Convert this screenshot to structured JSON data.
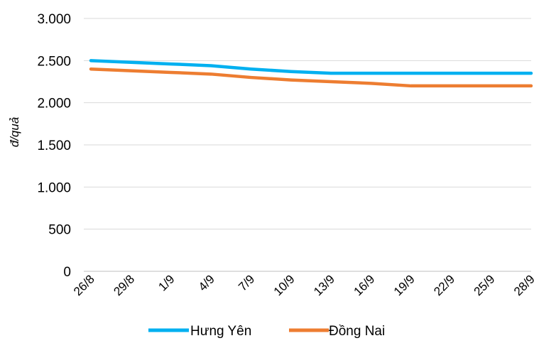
{
  "chart_data": {
    "type": "line",
    "title": "",
    "xlabel": "",
    "ylabel": "đ/quả",
    "ylim": [
      0,
      3000
    ],
    "yticks": [
      0,
      500,
      1000,
      1500,
      2000,
      2500,
      3000
    ],
    "ytick_labels": [
      "0",
      "500",
      "1.000",
      "1.500",
      "2.000",
      "2.500",
      "3.000"
    ],
    "categories": [
      "26/8",
      "29/8",
      "1/9",
      "4/9",
      "7/9",
      "10/9",
      "13/9",
      "16/9",
      "19/9",
      "22/9",
      "25/9",
      "28/9"
    ],
    "grid": true,
    "legend": "bottom",
    "series": [
      {
        "name": "Hưng Yên",
        "color": "#00B0F0",
        "values": [
          2500,
          2480,
          2460,
          2440,
          2400,
          2370,
          2350,
          2350,
          2350,
          2350,
          2350,
          2350
        ]
      },
      {
        "name": "Đồng Nai",
        "color": "#ED7D31",
        "values": [
          2400,
          2380,
          2360,
          2340,
          2300,
          2270,
          2250,
          2230,
          2200,
          2200,
          2200,
          2200
        ]
      }
    ]
  }
}
